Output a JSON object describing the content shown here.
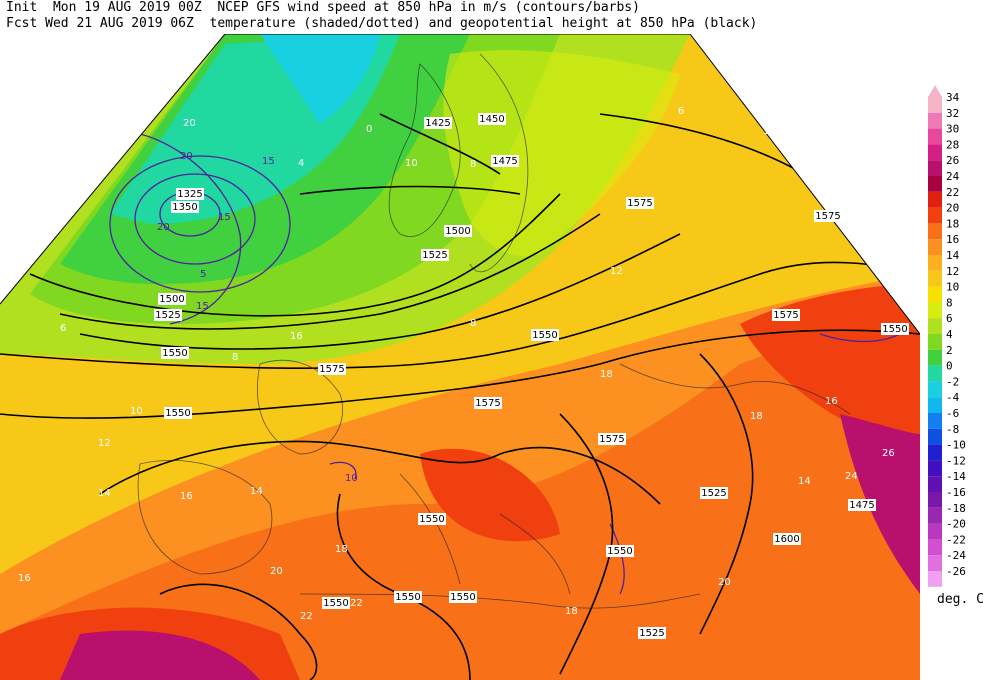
{
  "header": {
    "init_line": "Init  Mon 19 AUG 2019 00Z  NCEP GFS wind speed at 850 hPa in m/s (contours/barbs)",
    "fcst_line": "Fcst Wed 21 AUG 2019 06Z  temperature (shaded/dotted) and geopotential height at 850 hPa (black)"
  },
  "colorbar": {
    "units": "deg. C",
    "levels": [
      "34",
      "32",
      "30",
      "28",
      "26",
      "24",
      "22",
      "20",
      "18",
      "16",
      "14",
      "12",
      "10",
      "8",
      "6",
      "4",
      "2",
      "0",
      "-2",
      "-4",
      "-6",
      "-8",
      "-10",
      "-12",
      "-14",
      "-16",
      "-18",
      "-20",
      "-22",
      "-24",
      "-26"
    ],
    "colors": [
      "#f6b4c8",
      "#f07ab4",
      "#e8489c",
      "#d42084",
      "#b8106c",
      "#a80040",
      "#e02010",
      "#f04010",
      "#f87018",
      "#fc9020",
      "#fcb020",
      "#f8c818",
      "#f8e000",
      "#d8ec10",
      "#b0e020",
      "#80d820",
      "#40d040",
      "#20d8a0",
      "#18d0e0",
      "#10b8f0",
      "#1080f0",
      "#1050e0",
      "#2020d0",
      "#4010c0",
      "#6010b0",
      "#7818a8",
      "#9828b0",
      "#b838c0",
      "#d050d0",
      "#e070e0",
      "#f0a0f0"
    ]
  },
  "map": {
    "height_labels": [
      "1425",
      "1450",
      "1475",
      "1575",
      "1575",
      "1325",
      "1350",
      "1500",
      "1525",
      "1550",
      "1550",
      "1575",
      "1575",
      "1575",
      "1550",
      "1575",
      "1550",
      "1525",
      "1525",
      "1550",
      "1550",
      "1550",
      "1600",
      "1500",
      "1475",
      "1525",
      "1550",
      "1550"
    ],
    "temp_labels": [
      "20",
      "16",
      "8",
      "4",
      "0",
      "6",
      "8",
      "10",
      "12",
      "14",
      "16",
      "18",
      "20",
      "22",
      "24",
      "26",
      "18",
      "16",
      "14",
      "12",
      "10",
      "8",
      "6",
      "12",
      "18",
      "20",
      "22",
      "18",
      "16",
      "14"
    ],
    "wind_labels": [
      "20",
      "15",
      "15",
      "10",
      "5",
      "20",
      "15"
    ]
  }
}
